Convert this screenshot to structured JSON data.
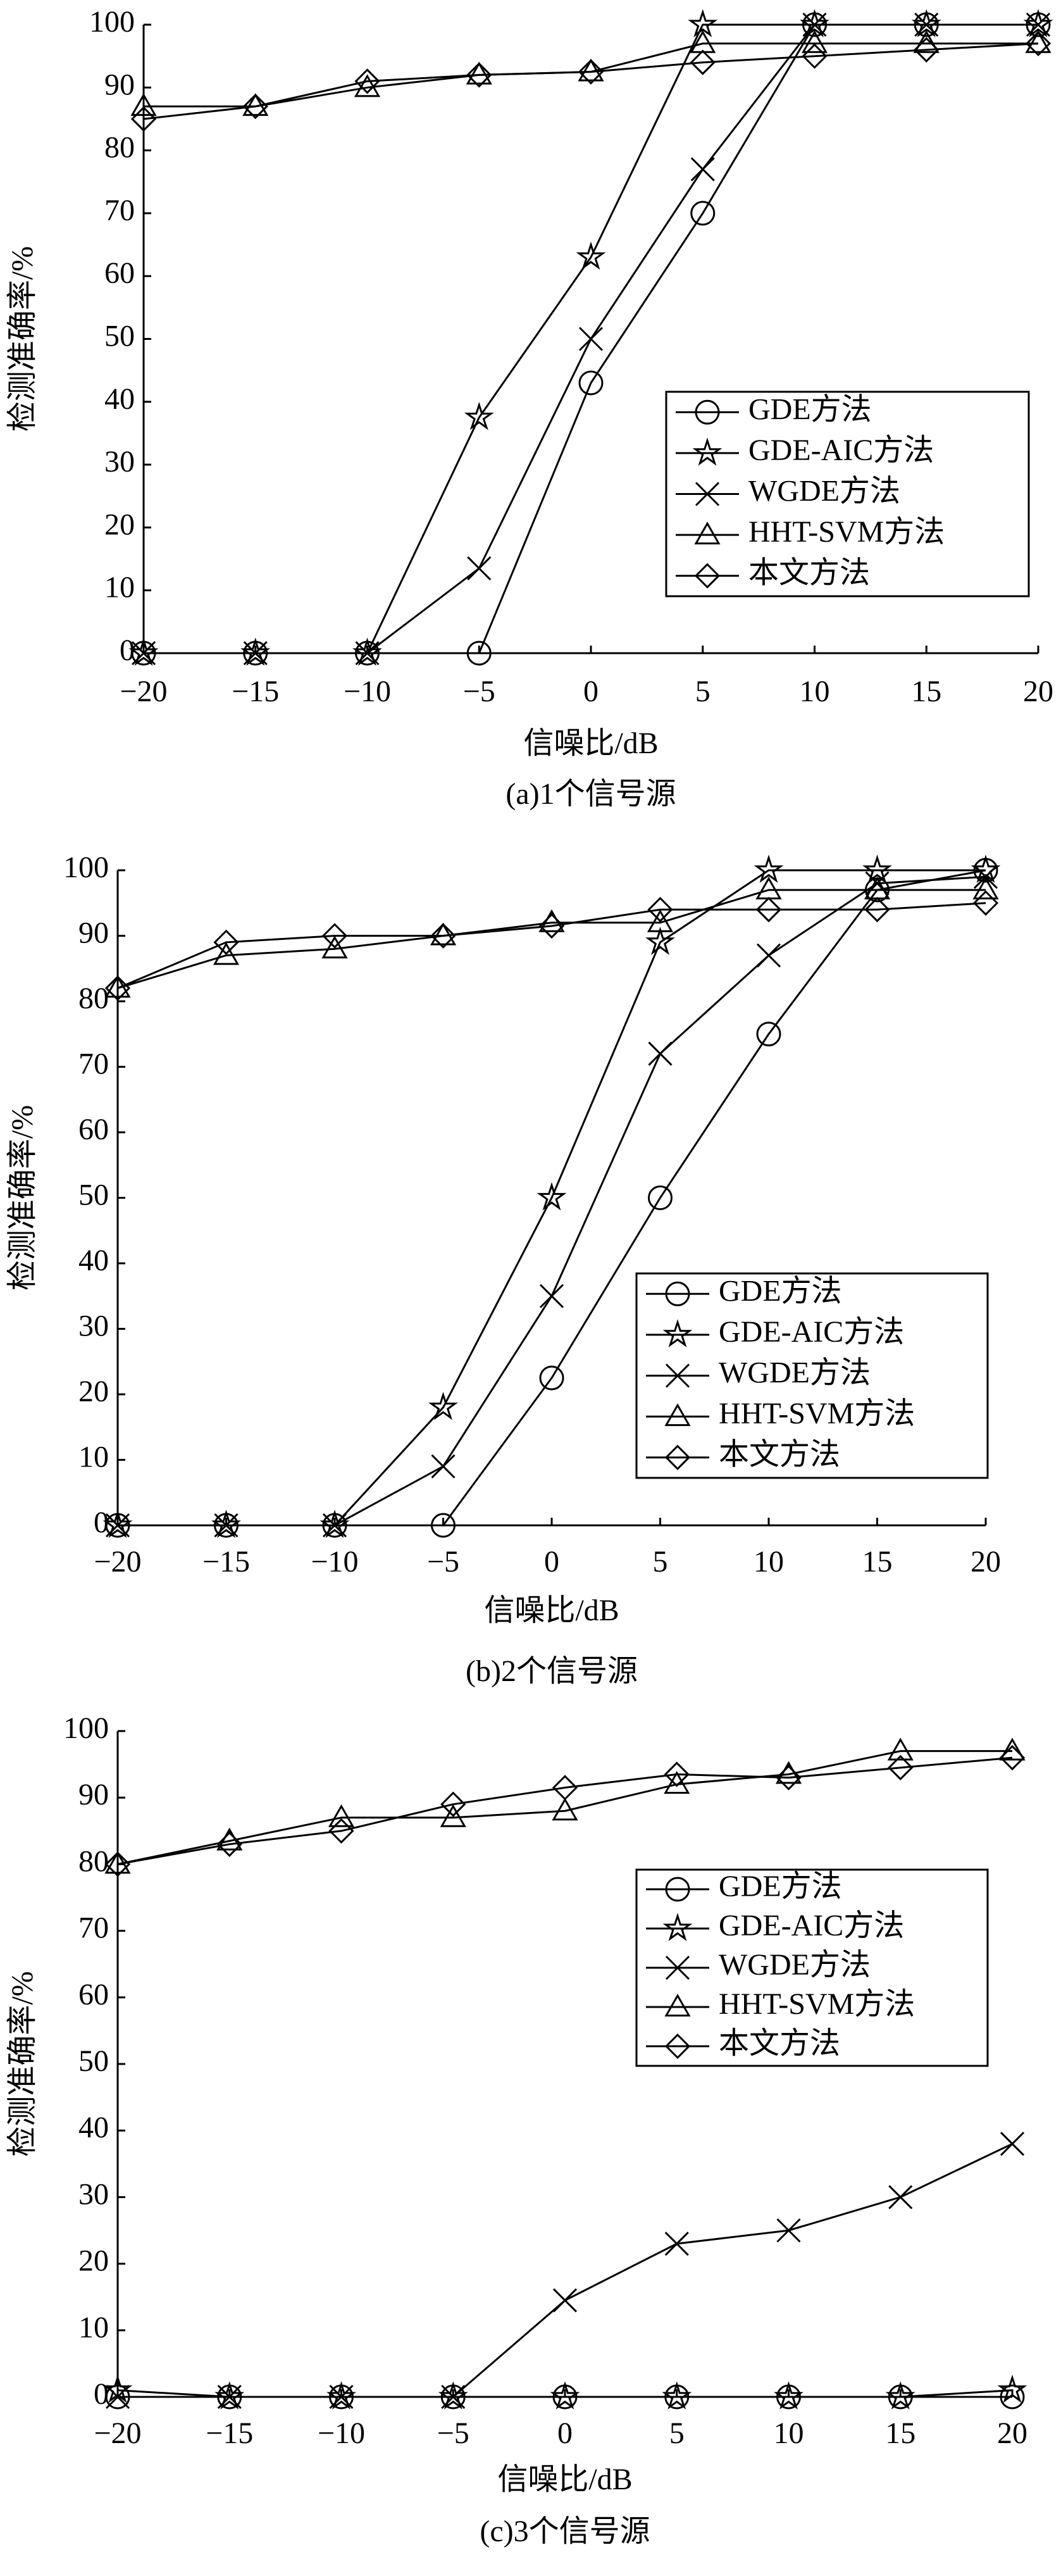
{
  "chart_data": [
    {
      "type": "line",
      "caption": "(a)1个信号源",
      "x_label": "信噪比/dB",
      "y_label": "检测准确率/%",
      "x": [
        -20,
        -15,
        -10,
        -5,
        0,
        5,
        10,
        15,
        20
      ],
      "xlim": [
        -20,
        20
      ],
      "xticks": [
        {
          "value": -20,
          "label": "−20"
        },
        {
          "value": -15,
          "label": "−15"
        },
        {
          "value": -10,
          "label": "−10"
        },
        {
          "value": -5,
          "label": "−5"
        },
        0,
        5,
        10,
        15,
        20
      ],
      "ylim": [
        0,
        100
      ],
      "yticks": [
        0,
        10,
        20,
        30,
        40,
        50,
        60,
        70,
        80,
        90,
        100
      ],
      "grid": false,
      "legend": "lower right",
      "series": [
        {
          "name": "GDE方法",
          "color": "#000000",
          "marker": "circle",
          "values": [
            0,
            0,
            0,
            0,
            43,
            70,
            100,
            100,
            100
          ]
        },
        {
          "name": "GDE-AIC方法",
          "color": "#000000",
          "marker": "star",
          "values": [
            0,
            0,
            0,
            37.5,
            63,
            100,
            100,
            100,
            100
          ]
        },
        {
          "name": "WGDE方法",
          "color": "#000000",
          "marker": "x",
          "values": [
            0,
            0,
            0,
            13.5,
            50,
            77,
            100,
            100,
            100
          ]
        },
        {
          "name": "HHT-SVM方法",
          "color": "#000000",
          "marker": "triangle",
          "values": [
            87,
            87,
            90,
            92,
            92.5,
            97,
            97,
            97,
            97
          ]
        },
        {
          "name": "本文方法",
          "color": "#000000",
          "marker": "diamond",
          "values": [
            85,
            87,
            91,
            92,
            92.5,
            94,
            95,
            96,
            97
          ]
        }
      ]
    },
    {
      "type": "line",
      "caption": "(b)2个信号源",
      "x_label": "信噪比/dB",
      "y_label": "检测准确率/%",
      "x": [
        -20,
        -15,
        -10,
        -5,
        0,
        5,
        10,
        15,
        20
      ],
      "xlim": [
        -20,
        20
      ],
      "xticks": [
        {
          "value": -20,
          "label": "−20"
        },
        {
          "value": -15,
          "label": "−15"
        },
        {
          "value": -10,
          "label": "−10"
        },
        {
          "value": -5,
          "label": "−5"
        },
        0,
        5,
        10,
        15,
        20
      ],
      "ylim": [
        0,
        100
      ],
      "yticks": [
        0,
        10,
        20,
        30,
        40,
        50,
        60,
        70,
        80,
        90,
        100
      ],
      "grid": false,
      "legend": "lower right",
      "series": [
        {
          "name": "GDE方法",
          "color": "#000000",
          "marker": "circle",
          "values": [
            0,
            0,
            0,
            0,
            22.5,
            50,
            75,
            97,
            100
          ]
        },
        {
          "name": "GDE-AIC方法",
          "color": "#000000",
          "marker": "star",
          "values": [
            0,
            0,
            0,
            18,
            50,
            89,
            100,
            100,
            100
          ]
        },
        {
          "name": "WGDE方法",
          "color": "#000000",
          "marker": "x",
          "values": [
            0,
            0,
            0,
            9,
            35,
            72,
            87,
            98,
            99
          ]
        },
        {
          "name": "HHT-SVM方法",
          "color": "#000000",
          "marker": "triangle",
          "values": [
            82,
            87,
            88,
            90,
            92,
            92,
            97,
            97,
            97
          ]
        },
        {
          "name": "本文方法",
          "color": "#000000",
          "marker": "diamond",
          "values": [
            82,
            89,
            90,
            90,
            91.5,
            94,
            94,
            94,
            95
          ]
        }
      ]
    },
    {
      "type": "line",
      "caption": "(c)3个信号源",
      "x_label": "信噪比/dB",
      "y_label": "检测准确率/%",
      "x": [
        -20,
        -15,
        -10,
        -5,
        0,
        5,
        10,
        15,
        20
      ],
      "xlim": [
        -20,
        20
      ],
      "xticks": [
        {
          "value": -20,
          "label": "−20"
        },
        {
          "value": -15,
          "label": "−15"
        },
        {
          "value": -10,
          "label": "−10"
        },
        {
          "value": -5,
          "label": "−5"
        },
        0,
        5,
        10,
        15,
        20
      ],
      "ylim": [
        0,
        100
      ],
      "yticks": [
        0,
        10,
        20,
        30,
        40,
        50,
        60,
        70,
        80,
        90,
        100
      ],
      "grid": false,
      "legend": "upper right",
      "series": [
        {
          "name": "GDE方法",
          "color": "#000000",
          "marker": "circle",
          "values": [
            0,
            0,
            0,
            0,
            0,
            0,
            0,
            0,
            0
          ]
        },
        {
          "name": "GDE-AIC方法",
          "color": "#000000",
          "marker": "star",
          "values": [
            1,
            0,
            0,
            0,
            0,
            0,
            0,
            0,
            1
          ]
        },
        {
          "name": "WGDE方法",
          "color": "#000000",
          "marker": "x",
          "values": [
            0,
            0,
            0,
            0,
            14.5,
            23,
            25,
            30,
            38
          ]
        },
        {
          "name": "HHT-SVM方法",
          "color": "#000000",
          "marker": "triangle",
          "values": [
            80,
            83.5,
            87,
            87,
            88,
            92,
            93.5,
            97,
            97
          ]
        },
        {
          "name": "本文方法",
          "color": "#000000",
          "marker": "diamond",
          "values": [
            80,
            83,
            85,
            89,
            91.5,
            93.5,
            93,
            94.5,
            96
          ]
        }
      ]
    }
  ]
}
